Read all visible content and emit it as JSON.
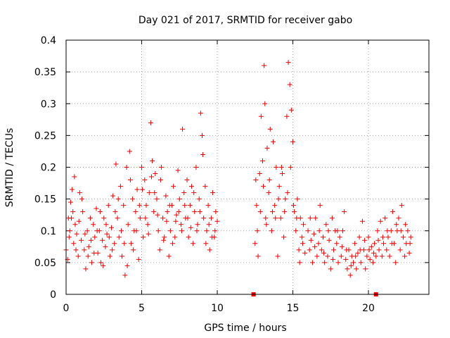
{
  "chart_data": {
    "type": "scatter",
    "title": "Day 021 of 2017, SRMTID for receiver gabo",
    "xlabel": "GPS time / hours",
    "ylabel": "SRMTID / TECUs",
    "xlim": [
      0,
      24
    ],
    "ylim": [
      0,
      0.4
    ],
    "xticks": [
      0,
      5,
      10,
      15,
      20
    ],
    "xtick_labels": [
      "0",
      "5",
      "10",
      "15",
      "20"
    ],
    "yticks": [
      0,
      0.05,
      0.1,
      0.15,
      0.2,
      0.25,
      0.3,
      0.35,
      0.4
    ],
    "ytick_labels": [
      "0",
      "0.05",
      "0.1",
      "0.15",
      "0.2",
      "0.25",
      "0.3",
      "0.35",
      "0.4"
    ],
    "grid": true,
    "marker": "plus",
    "color": "#ee0000",
    "series": [
      {
        "name": "SRMTID",
        "points": [
          [
            0.0,
            0.07
          ],
          [
            0.1,
            0.055
          ],
          [
            0.2,
            0.09
          ],
          [
            0.25,
            0.1
          ],
          [
            0.3,
            0.145
          ],
          [
            0.35,
            0.12
          ],
          [
            0.4,
            0.165
          ],
          [
            0.5,
            0.08
          ],
          [
            0.55,
            0.185
          ],
          [
            0.6,
            0.11
          ],
          [
            0.7,
            0.095
          ],
          [
            0.8,
            0.06
          ],
          [
            0.9,
            0.16
          ],
          [
            1.0,
            0.085
          ],
          [
            1.1,
            0.13
          ],
          [
            1.2,
            0.07
          ],
          [
            1.3,
            0.04
          ],
          [
            1.4,
            0.1
          ],
          [
            1.5,
            0.075
          ],
          [
            1.6,
            0.12
          ],
          [
            1.7,
            0.05
          ],
          [
            1.8,
            0.11
          ],
          [
            1.9,
            0.09
          ],
          [
            2.0,
            0.135
          ],
          [
            2.1,
            0.065
          ],
          [
            2.2,
            0.1
          ],
          [
            2.3,
            0.05
          ],
          [
            2.4,
            0.085
          ],
          [
            2.5,
            0.12
          ],
          [
            2.6,
            0.075
          ],
          [
            2.7,
            0.095
          ],
          [
            2.8,
            0.14
          ],
          [
            2.9,
            0.06
          ],
          [
            3.0,
            0.105
          ],
          [
            3.1,
            0.155
          ],
          [
            3.2,
            0.08
          ],
          [
            3.3,
            0.205
          ],
          [
            3.4,
            0.12
          ],
          [
            3.5,
            0.09
          ],
          [
            3.6,
            0.17
          ],
          [
            3.7,
            0.06
          ],
          [
            3.8,
            0.14
          ],
          [
            3.9,
            0.03
          ],
          [
            4.0,
            0.2
          ],
          [
            4.1,
            0.11
          ],
          [
            4.2,
            0.225
          ],
          [
            4.3,
            0.08
          ],
          [
            4.4,
            0.15
          ],
          [
            4.5,
            0.1
          ],
          [
            4.6,
            0.13
          ],
          [
            4.7,
            0.165
          ],
          [
            4.8,
            0.055
          ],
          [
            4.9,
            0.12
          ],
          [
            5.0,
            0.2
          ],
          [
            5.1,
            0.09
          ],
          [
            5.2,
            0.18
          ],
          [
            5.3,
            0.14
          ],
          [
            5.4,
            0.11
          ],
          [
            5.5,
            0.16
          ],
          [
            5.6,
            0.27
          ],
          [
            5.7,
            0.21
          ],
          [
            5.8,
            0.13
          ],
          [
            5.9,
            0.19
          ],
          [
            6.0,
            0.15
          ],
          [
            6.1,
            0.1
          ],
          [
            6.2,
            0.07
          ],
          [
            6.3,
            0.2
          ],
          [
            6.4,
            0.12
          ],
          [
            6.5,
            0.09
          ],
          [
            6.6,
            0.155
          ],
          [
            6.7,
            0.13
          ],
          [
            6.8,
            0.06
          ],
          [
            6.9,
            0.1
          ],
          [
            7.0,
            0.14
          ],
          [
            7.1,
            0.17
          ],
          [
            7.2,
            0.09
          ],
          [
            7.3,
            0.125
          ],
          [
            7.4,
            0.195
          ],
          [
            7.5,
            0.15
          ],
          [
            7.6,
            0.11
          ],
          [
            7.7,
            0.26
          ],
          [
            7.8,
            0.16
          ],
          [
            7.9,
            0.12
          ],
          [
            8.0,
            0.18
          ],
          [
            8.1,
            0.09
          ],
          [
            8.2,
            0.14
          ],
          [
            8.3,
            0.17
          ],
          [
            8.4,
            0.08
          ],
          [
            8.5,
            0.13
          ],
          [
            8.6,
            0.2
          ],
          [
            8.7,
            0.11
          ],
          [
            8.8,
            0.15
          ],
          [
            8.9,
            0.285
          ],
          [
            9.0,
            0.25
          ],
          [
            9.1,
            0.12
          ],
          [
            9.2,
            0.17
          ],
          [
            9.3,
            0.1
          ],
          [
            9.4,
            0.14
          ],
          [
            9.5,
            0.07
          ],
          [
            9.6,
            0.12
          ],
          [
            9.7,
            0.16
          ],
          [
            9.8,
            0.09
          ],
          [
            9.9,
            0.13
          ],
          [
            10.0,
            0.115
          ],
          [
            0.15,
            0.12
          ],
          [
            0.45,
            0.13
          ],
          [
            0.65,
            0.07
          ],
          [
            0.85,
            0.115
          ],
          [
            1.05,
            0.15
          ],
          [
            1.25,
            0.095
          ],
          [
            1.45,
            0.06
          ],
          [
            1.65,
            0.085
          ],
          [
            1.85,
            0.065
          ],
          [
            2.05,
            0.1
          ],
          [
            2.25,
            0.13
          ],
          [
            2.45,
            0.045
          ],
          [
            2.65,
            0.11
          ],
          [
            2.85,
            0.09
          ],
          [
            3.05,
            0.07
          ],
          [
            3.25,
            0.13
          ],
          [
            3.45,
            0.15
          ],
          [
            3.65,
            0.1
          ],
          [
            3.85,
            0.08
          ],
          [
            4.05,
            0.045
          ],
          [
            4.25,
            0.18
          ],
          [
            4.45,
            0.07
          ],
          [
            4.65,
            0.1
          ],
          [
            4.85,
            0.14
          ],
          [
            5.05,
            0.165
          ],
          [
            5.25,
            0.12
          ],
          [
            5.45,
            0.095
          ],
          [
            5.65,
            0.185
          ],
          [
            5.85,
            0.16
          ],
          [
            6.05,
            0.125
          ],
          [
            6.25,
            0.18
          ],
          [
            6.45,
            0.085
          ],
          [
            6.65,
            0.115
          ],
          [
            6.85,
            0.14
          ],
          [
            7.05,
            0.08
          ],
          [
            7.25,
            0.115
          ],
          [
            7.45,
            0.13
          ],
          [
            7.65,
            0.1
          ],
          [
            7.85,
            0.14
          ],
          [
            8.05,
            0.12
          ],
          [
            8.25,
            0.105
          ],
          [
            8.45,
            0.16
          ],
          [
            8.65,
            0.1
          ],
          [
            8.85,
            0.13
          ],
          [
            9.05,
            0.22
          ],
          [
            9.25,
            0.08
          ],
          [
            9.45,
            0.11
          ],
          [
            9.65,
            0.09
          ],
          [
            9.85,
            0.1
          ],
          [
            12.5,
            0.08
          ],
          [
            12.55,
            0.18
          ],
          [
            12.6,
            0.14
          ],
          [
            12.7,
            0.06
          ],
          [
            12.8,
            0.19
          ],
          [
            12.9,
            0.28
          ],
          [
            13.0,
            0.21
          ],
          [
            13.1,
            0.36
          ],
          [
            13.15,
            0.3
          ],
          [
            13.2,
            0.12
          ],
          [
            13.3,
            0.23
          ],
          [
            13.4,
            0.16
          ],
          [
            13.5,
            0.26
          ],
          [
            13.6,
            0.1
          ],
          [
            13.7,
            0.24
          ],
          [
            13.8,
            0.14
          ],
          [
            13.9,
            0.2
          ],
          [
            14.0,
            0.06
          ],
          [
            14.1,
            0.17
          ],
          [
            14.2,
            0.12
          ],
          [
            14.3,
            0.19
          ],
          [
            14.4,
            0.09
          ],
          [
            14.5,
            0.15
          ],
          [
            14.6,
            0.28
          ],
          [
            14.7,
            0.365
          ],
          [
            14.8,
            0.33
          ],
          [
            14.9,
            0.29
          ],
          [
            15.0,
            0.24
          ],
          [
            15.1,
            0.13
          ],
          [
            15.2,
            0.1
          ],
          [
            15.3,
            0.15
          ],
          [
            15.4,
            0.07
          ],
          [
            15.5,
            0.12
          ],
          [
            15.6,
            0.09
          ],
          [
            15.7,
            0.11
          ],
          [
            15.8,
            0.065
          ],
          [
            12.65,
            0.1
          ],
          [
            12.85,
            0.13
          ],
          [
            13.05,
            0.17
          ],
          [
            13.25,
            0.11
          ],
          [
            13.45,
            0.18
          ],
          [
            13.65,
            0.13
          ],
          [
            13.85,
            0.12
          ],
          [
            14.05,
            0.15
          ],
          [
            14.25,
            0.2
          ],
          [
            14.45,
            0.13
          ],
          [
            14.65,
            0.16
          ],
          [
            14.85,
            0.2
          ],
          [
            15.05,
            0.14
          ],
          [
            15.25,
            0.12
          ],
          [
            15.45,
            0.05
          ],
          [
            15.65,
            0.08
          ],
          [
            16.0,
            0.1
          ],
          [
            16.1,
            0.07
          ],
          [
            16.2,
            0.085
          ],
          [
            16.3,
            0.05
          ],
          [
            16.4,
            0.095
          ],
          [
            16.5,
            0.12
          ],
          [
            16.6,
            0.06
          ],
          [
            16.7,
            0.08
          ],
          [
            16.8,
            0.14
          ],
          [
            16.9,
            0.07
          ],
          [
            17.0,
            0.09
          ],
          [
            17.1,
            0.05
          ],
          [
            17.2,
            0.11
          ],
          [
            17.3,
            0.06
          ],
          [
            17.4,
            0.085
          ],
          [
            17.5,
            0.04
          ],
          [
            17.6,
            0.12
          ],
          [
            17.7,
            0.07
          ],
          [
            17.8,
            0.1
          ],
          [
            17.9,
            0.08
          ],
          [
            18.0,
            0.05
          ],
          [
            18.1,
            0.09
          ],
          [
            18.2,
            0.06
          ],
          [
            18.3,
            0.1
          ],
          [
            18.4,
            0.13
          ],
          [
            18.5,
            0.055
          ],
          [
            18.6,
            0.04
          ],
          [
            18.7,
            0.07
          ],
          [
            18.8,
            0.03
          ],
          [
            18.9,
            0.06
          ],
          [
            19.0,
            0.05
          ],
          [
            19.1,
            0.08
          ],
          [
            19.2,
            0.04
          ],
          [
            19.3,
            0.065
          ],
          [
            19.4,
            0.09
          ],
          [
            19.5,
            0.05
          ],
          [
            19.6,
            0.115
          ],
          [
            19.7,
            0.07
          ],
          [
            19.8,
            0.04
          ],
          [
            19.9,
            0.06
          ],
          [
            20.0,
            0.09
          ],
          [
            20.1,
            0.055
          ],
          [
            20.2,
            0.075
          ],
          [
            20.3,
            0.05
          ],
          [
            20.4,
            0.08
          ],
          [
            20.5,
            0.06
          ],
          [
            20.6,
            0.1
          ],
          [
            20.7,
            0.07
          ],
          [
            20.8,
            0.115
          ],
          [
            20.9,
            0.06
          ],
          [
            21.0,
            0.08
          ],
          [
            21.1,
            0.12
          ],
          [
            21.2,
            0.07
          ],
          [
            21.3,
            0.09
          ],
          [
            21.4,
            0.06
          ],
          [
            21.5,
            0.1
          ],
          [
            21.6,
            0.13
          ],
          [
            21.7,
            0.08
          ],
          [
            21.8,
            0.05
          ],
          [
            21.9,
            0.1
          ],
          [
            22.0,
            0.12
          ],
          [
            22.1,
            0.07
          ],
          [
            22.2,
            0.14
          ],
          [
            22.3,
            0.09
          ],
          [
            22.4,
            0.06
          ],
          [
            22.5,
            0.08
          ],
          [
            22.6,
            0.1
          ],
          [
            22.7,
            0.065
          ],
          [
            22.8,
            0.09
          ],
          [
            16.15,
            0.12
          ],
          [
            16.45,
            0.075
          ],
          [
            16.75,
            0.1
          ],
          [
            17.05,
            0.065
          ],
          [
            17.35,
            0.1
          ],
          [
            17.65,
            0.055
          ],
          [
            17.95,
            0.1
          ],
          [
            18.25,
            0.075
          ],
          [
            18.55,
            0.07
          ],
          [
            18.85,
            0.045
          ],
          [
            19.15,
            0.06
          ],
          [
            19.45,
            0.07
          ],
          [
            19.75,
            0.085
          ],
          [
            20.05,
            0.07
          ],
          [
            20.35,
            0.065
          ],
          [
            20.65,
            0.085
          ],
          [
            20.95,
            0.09
          ],
          [
            21.25,
            0.1
          ],
          [
            21.55,
            0.08
          ],
          [
            21.85,
            0.11
          ],
          [
            22.15,
            0.1
          ],
          [
            22.45,
            0.11
          ],
          [
            22.75,
            0.08
          ]
        ]
      }
    ],
    "gap_markers_x": [
      12.4,
      20.5
    ]
  }
}
